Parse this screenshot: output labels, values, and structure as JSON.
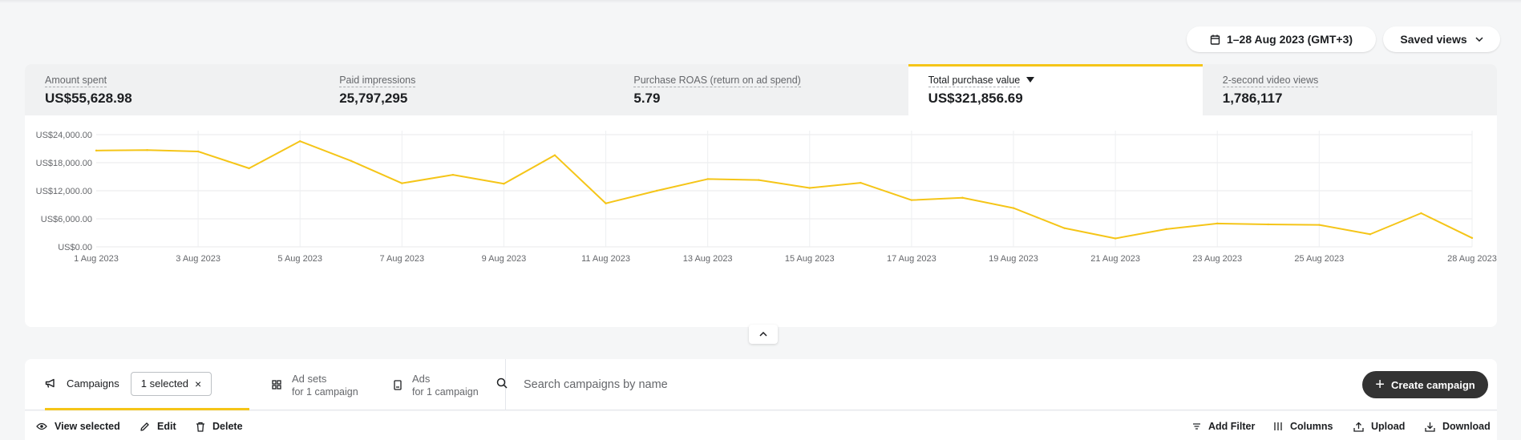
{
  "header": {
    "date_range": "1–28 Aug 2023 (GMT+3)",
    "saved_views": "Saved views"
  },
  "metrics": [
    {
      "label": "Amount spent",
      "value": "US$55,628.98",
      "active": false
    },
    {
      "label": "Paid impressions",
      "value": "25,797,295",
      "active": false
    },
    {
      "label": "Purchase ROAS (return on ad spend)",
      "value": "5.79",
      "active": false
    },
    {
      "label": "Total purchase value",
      "value": "US$321,856.69",
      "active": true
    },
    {
      "label": "2-second video views",
      "value": "1,786,117",
      "active": false
    }
  ],
  "chart_data": {
    "type": "line",
    "title": "",
    "xlabel": "",
    "ylabel": "",
    "ylim": [
      0,
      24000
    ],
    "yticks": [
      "US$0.00",
      "US$6,000.00",
      "US$12,000.00",
      "US$18,000.00",
      "US$24,000.00"
    ],
    "xticks": [
      "1 Aug 2023",
      "3 Aug 2023",
      "5 Aug 2023",
      "7 Aug 2023",
      "9 Aug 2023",
      "11 Aug 2023",
      "13 Aug 2023",
      "15 Aug 2023",
      "17 Aug 2023",
      "19 Aug 2023",
      "21 Aug 2023",
      "23 Aug 2023",
      "25 Aug 2023",
      "28 Aug 2023"
    ],
    "x": [
      "1 Aug 2023",
      "2 Aug 2023",
      "3 Aug 2023",
      "4 Aug 2023",
      "5 Aug 2023",
      "6 Aug 2023",
      "7 Aug 2023",
      "8 Aug 2023",
      "9 Aug 2023",
      "10 Aug 2023",
      "11 Aug 2023",
      "12 Aug 2023",
      "13 Aug 2023",
      "14 Aug 2023",
      "15 Aug 2023",
      "16 Aug 2023",
      "17 Aug 2023",
      "18 Aug 2023",
      "19 Aug 2023",
      "20 Aug 2023",
      "21 Aug 2023",
      "22 Aug 2023",
      "23 Aug 2023",
      "24 Aug 2023",
      "25 Aug 2023",
      "26 Aug 2023",
      "27 Aug 2023",
      "28 Aug 2023"
    ],
    "series": [
      {
        "color": "#f5c518",
        "values": [
          20600,
          20700,
          20400,
          16800,
          22600,
          18400,
          13600,
          15400,
          13500,
          19600,
          9300,
          12000,
          14500,
          14300,
          12600,
          13700,
          10000,
          10500,
          8300,
          4000,
          1800,
          3800,
          5000,
          4800,
          4700,
          2700,
          7200,
          1900
        ]
      }
    ],
    "grid": true,
    "legend": "none"
  },
  "toolbar": {
    "tabs": [
      {
        "label": "Campaigns"
      },
      {
        "label": "Ad sets",
        "sub": "for 1 campaign"
      },
      {
        "label": "Ads",
        "sub": "for 1 campaign"
      }
    ],
    "selected_chip": "1 selected",
    "search_placeholder": "Search campaigns by name",
    "create_label": "Create campaign"
  },
  "actions": {
    "view_selected": "View selected",
    "edit": "Edit",
    "delete": "Delete",
    "add_filter": "Add Filter",
    "columns": "Columns",
    "upload": "Upload",
    "download": "Download"
  },
  "colors": {
    "accent": "#f5c518",
    "dark_button": "#333333"
  }
}
